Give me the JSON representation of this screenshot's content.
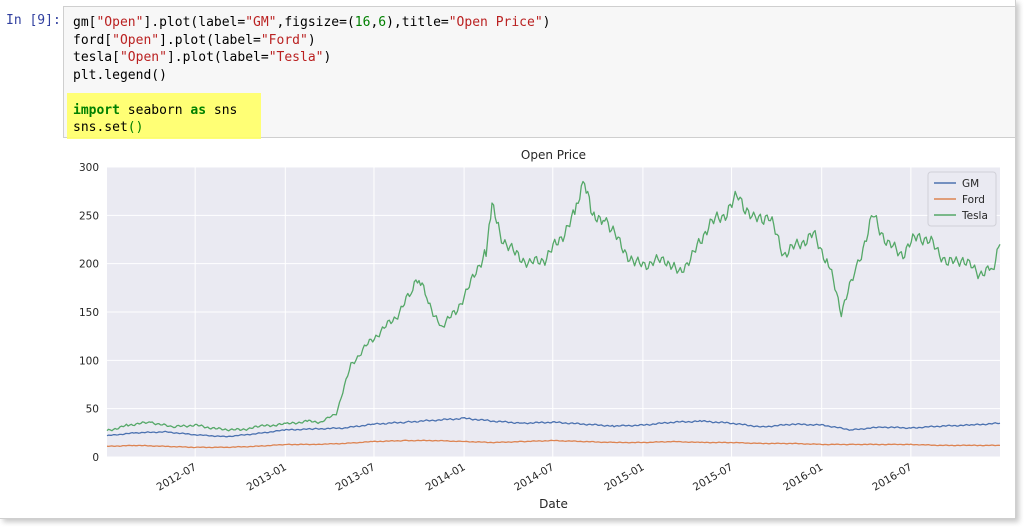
{
  "cell": {
    "prompt": "In [9]:",
    "code_lines": [
      [
        {
          "t": "gm["
        },
        {
          "t": "\"Open\"",
          "c": "str"
        },
        {
          "t": "].plot(label="
        },
        {
          "t": "\"GM\"",
          "c": "str"
        },
        {
          "t": ",figsize=("
        },
        {
          "t": "16",
          "c": "num"
        },
        {
          "t": ","
        },
        {
          "t": "6",
          "c": "num"
        },
        {
          "t": "),title="
        },
        {
          "t": "\"Open Price\"",
          "c": "str"
        },
        {
          "t": ")"
        }
      ],
      [
        {
          "t": "ford["
        },
        {
          "t": "\"Open\"",
          "c": "str"
        },
        {
          "t": "].plot(label="
        },
        {
          "t": "\"Ford\"",
          "c": "str"
        },
        {
          "t": ")"
        }
      ],
      [
        {
          "t": "tesla["
        },
        {
          "t": "\"Open\"",
          "c": "str"
        },
        {
          "t": "].plot(label="
        },
        {
          "t": "\"Tesla\"",
          "c": "str"
        },
        {
          "t": ")"
        }
      ],
      [
        {
          "t": "plt.legend()"
        }
      ],
      [
        {
          "t": ""
        }
      ],
      [
        {
          "t": "import",
          "c": "kw"
        },
        {
          "t": " seaborn "
        },
        {
          "t": "as",
          "c": "kw"
        },
        {
          "t": " sns"
        }
      ],
      [
        {
          "t": "sns.set"
        },
        {
          "t": "()",
          "c": "num"
        }
      ]
    ]
  },
  "chart_data": {
    "type": "line",
    "title": "Open Price",
    "xlabel": "Date",
    "ylabel": "",
    "ylim": [
      0,
      300
    ],
    "xlim": [
      "2012-01-03",
      "2016-12-30"
    ],
    "yticks": [
      0,
      50,
      100,
      150,
      200,
      250,
      300
    ],
    "xticks": [
      "2012-07",
      "2013-01",
      "2013-07",
      "2014-01",
      "2014-07",
      "2015-01",
      "2015-07",
      "2016-01",
      "2016-07"
    ],
    "grid": true,
    "legend_position": "top-right",
    "series": [
      {
        "name": "GM",
        "color": "#4c72b0",
        "x": [
          "2012-01-03",
          "2012-03-01",
          "2012-05-01",
          "2012-07-01",
          "2012-09-01",
          "2012-11-01",
          "2013-01-02",
          "2013-03-01",
          "2013-05-01",
          "2013-07-01",
          "2013-09-03",
          "2013-11-01",
          "2014-01-02",
          "2014-03-03",
          "2014-05-01",
          "2014-07-01",
          "2014-09-02",
          "2014-11-03",
          "2015-01-02",
          "2015-03-02",
          "2015-05-01",
          "2015-07-01",
          "2015-09-01",
          "2015-11-02",
          "2016-01-04",
          "2016-03-01",
          "2016-05-02",
          "2016-07-01",
          "2016-09-01",
          "2016-11-01",
          "2016-12-30"
        ],
        "y": [
          22,
          25,
          26,
          23,
          21,
          24,
          28,
          29,
          30,
          34,
          36,
          38,
          40,
          37,
          35,
          36,
          34,
          32,
          33,
          36,
          37,
          35,
          31,
          34,
          33,
          28,
          31,
          30,
          32,
          33,
          35
        ]
      },
      {
        "name": "Ford",
        "color": "#dd8452",
        "x": [
          "2012-01-03",
          "2012-03-01",
          "2012-05-01",
          "2012-07-01",
          "2012-09-01",
          "2012-11-01",
          "2013-01-02",
          "2013-03-01",
          "2013-05-01",
          "2013-07-01",
          "2013-09-03",
          "2013-11-01",
          "2014-01-02",
          "2014-03-03",
          "2014-05-01",
          "2014-07-01",
          "2014-09-02",
          "2014-11-03",
          "2015-01-02",
          "2015-03-02",
          "2015-05-01",
          "2015-07-01",
          "2015-09-01",
          "2015-11-02",
          "2016-01-04",
          "2016-03-01",
          "2016-05-02",
          "2016-07-01",
          "2016-09-01",
          "2016-11-01",
          "2016-12-30"
        ],
        "y": [
          11,
          12,
          11,
          10,
          10,
          11,
          13,
          13,
          14,
          16,
          17,
          17,
          16,
          15,
          16,
          17,
          16,
          15,
          15,
          16,
          15,
          15,
          14,
          14,
          13,
          13,
          13,
          13,
          12,
          12,
          12
        ]
      },
      {
        "name": "Tesla",
        "color": "#55a868",
        "x": [
          "2012-01-03",
          "2012-02-15",
          "2012-04-01",
          "2012-05-15",
          "2012-07-01",
          "2012-08-15",
          "2012-10-01",
          "2012-11-15",
          "2013-01-02",
          "2013-02-15",
          "2013-03-15",
          "2013-04-15",
          "2013-05-15",
          "2013-06-15",
          "2013-07-15",
          "2013-08-15",
          "2013-09-15",
          "2013-10-01",
          "2013-10-20",
          "2013-11-15",
          "2013-12-15",
          "2014-01-15",
          "2014-02-15",
          "2014-02-27",
          "2014-03-15",
          "2014-04-15",
          "2014-05-15",
          "2014-06-15",
          "2014-07-15",
          "2014-08-15",
          "2014-09-04",
          "2014-09-20",
          "2014-10-15",
          "2014-11-15",
          "2014-12-15",
          "2015-01-15",
          "2015-02-15",
          "2015-03-15",
          "2015-04-15",
          "2015-05-15",
          "2015-06-15",
          "2015-07-15",
          "2015-08-15",
          "2015-09-15",
          "2015-10-15",
          "2015-11-15",
          "2015-12-15",
          "2016-01-15",
          "2016-02-10",
          "2016-03-15",
          "2016-04-15",
          "2016-05-15",
          "2016-06-15",
          "2016-07-15",
          "2016-08-15",
          "2016-09-15",
          "2016-10-15",
          "2016-11-15",
          "2016-12-15",
          "2016-12-30"
        ],
        "y": [
          27,
          33,
          36,
          31,
          33,
          29,
          28,
          32,
          34,
          37,
          36,
          45,
          95,
          115,
          130,
          145,
          170,
          185,
          160,
          135,
          150,
          180,
          215,
          260,
          230,
          210,
          200,
          205,
          225,
          250,
          285,
          245,
          250,
          220,
          200,
          200,
          205,
          190,
          210,
          240,
          250,
          270,
          245,
          250,
          210,
          220,
          230,
          200,
          150,
          200,
          250,
          220,
          210,
          230,
          220,
          200,
          205,
          190,
          195,
          220
        ]
      }
    ]
  }
}
